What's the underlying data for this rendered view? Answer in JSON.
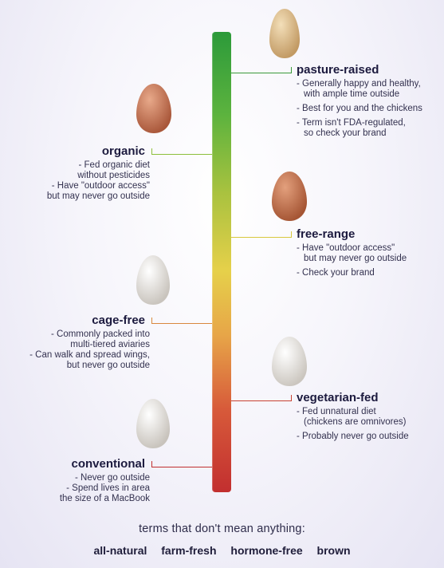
{
  "scale_bar": {
    "top_color": "#2c9a3a",
    "middle_color": "#e6d04a",
    "bottom_color": "#c22f2f"
  },
  "labels": {
    "pasture_raised": {
      "title": "pasture-raised",
      "lines": [
        "- Generally happy and healthy,",
        "  with ample time outside",
        "- Best for you and the chickens",
        "- Term isn't FDA-regulated,",
        "  so check your brand"
      ],
      "egg_color": "#d9b98a",
      "connector_color": "#3a9a3a"
    },
    "organic": {
      "title": "organic",
      "lines": [
        "- Fed organic diet",
        "without pesticides",
        "- Have \"outdoor access\"",
        "but may never go outside"
      ],
      "egg_color": "#c98058",
      "connector_color": "#8cbf3c"
    },
    "free_range": {
      "title": "free-range",
      "lines": [
        "- Have \"outdoor access\"",
        "  but may never go outside",
        "- Check your brand"
      ],
      "egg_color": "#c57a4e",
      "connector_color": "#d8c83e"
    },
    "cage_free": {
      "title": "cage-free",
      "lines": [
        "- Commonly packed into",
        "multi-tiered aviaries",
        "- Can walk and spread wings,",
        "but never go outside"
      ],
      "egg_color": "#e8e4df",
      "connector_color": "#d9883e"
    },
    "vegetarian_fed": {
      "title": "vegetarian-fed",
      "lines": [
        "- Fed unnatural diet",
        "  (chickens are omnivores)",
        "- Probably never go outside"
      ],
      "egg_color": "#ebe8e4",
      "connector_color": "#c84232"
    },
    "conventional": {
      "title": "conventional",
      "lines": [
        "- Never go outside",
        "- Spend lives in area",
        "the size of a MacBook"
      ],
      "egg_color": "#ebe7e2",
      "connector_color": "#c02f2f"
    }
  },
  "footer": {
    "title": "terms that don't mean anything:",
    "terms": [
      "all-natural",
      "farm-fresh",
      "hormone-free",
      "brown"
    ]
  }
}
